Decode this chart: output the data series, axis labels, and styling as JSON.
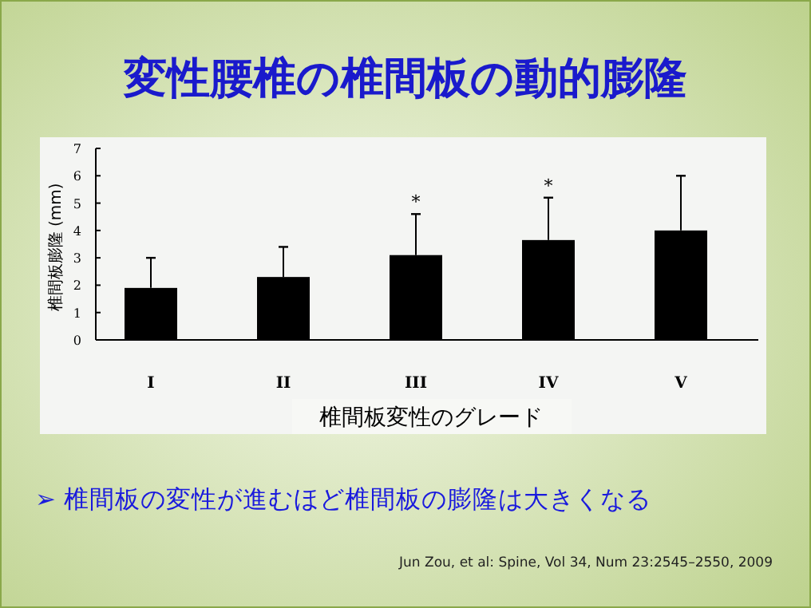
{
  "chart_data": {
    "type": "bar",
    "title": "変性腰椎の椎間板の動的膨隆",
    "xlabel": "椎間板変性のグレード",
    "ylabel": "椎間板膨隆 (mm)",
    "categories": [
      "I",
      "II",
      "III",
      "IV",
      "V"
    ],
    "values": [
      1.9,
      2.3,
      3.1,
      3.65,
      4.0
    ],
    "errors": [
      [
        1.9,
        3.0
      ],
      [
        2.3,
        3.4
      ],
      [
        3.1,
        4.6
      ],
      [
        3.65,
        5.2
      ],
      [
        4.0,
        6.0
      ]
    ],
    "color": "#000000",
    "ylim": [
      0,
      7
    ],
    "yticks": [
      0,
      1,
      2,
      3,
      4,
      5,
      6,
      7
    ],
    "grid": false,
    "annotations": [
      {
        "text": "*",
        "x": "III",
        "y": 4.6
      },
      {
        "text": "*",
        "x": "IV",
        "y": 5.2
      },
      "➢ 椎間板の変性が進むほど椎間板の膨隆は大きくなる",
      "Jun Zou, et al: Spine, Vol 34, Num 23:2545–2550, 2009"
    ]
  }
}
